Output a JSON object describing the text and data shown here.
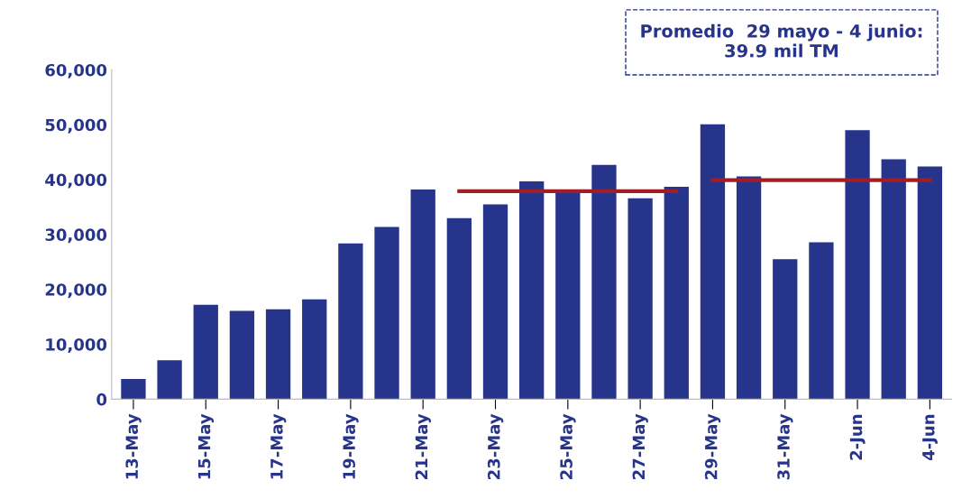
{
  "chart_data": {
    "type": "bar",
    "categories": [
      "13-May",
      null,
      "15-May",
      null,
      "17-May",
      null,
      "19-May",
      null,
      "21-May",
      null,
      "23-May",
      null,
      "25-May",
      null,
      "27-May",
      null,
      "29-May",
      null,
      "31-May",
      null,
      "2-Jun",
      null,
      "4-Jun"
    ],
    "series": [
      {
        "color": "#27348b",
        "values": [
          3700,
          7100,
          17200,
          16100,
          16400,
          18200,
          28400,
          31400,
          38200,
          33000,
          35500,
          39700,
          38000,
          42700,
          36600,
          38700,
          50100,
          40600,
          25500,
          28600,
          49000,
          43700,
          42400
        ]
      },
      {
        "type": "line",
        "color": "#a31d24",
        "values": [
          null,
          null,
          null,
          null,
          null,
          null,
          null,
          null,
          null,
          37900,
          37900,
          37900,
          37900,
          37900,
          37900,
          37900,
          null,
          null,
          null,
          null,
          null,
          null,
          null
        ]
      },
      {
        "type": "line",
        "color": "#a31d24",
        "values": [
          null,
          null,
          null,
          null,
          null,
          null,
          null,
          null,
          null,
          null,
          null,
          null,
          null,
          null,
          null,
          null,
          39900,
          39900,
          39900,
          39900,
          39900,
          39900,
          39900
        ]
      }
    ],
    "ylim": [
      0,
      60000
    ],
    "yticks": [
      {
        "value": 0,
        "label": "0"
      },
      {
        "value": 10000,
        "label": "10,000"
      },
      {
        "value": 20000,
        "label": "20,000"
      },
      {
        "value": 30000,
        "label": "30,000"
      },
      {
        "value": 40000,
        "label": "40,000"
      },
      {
        "value": 50000,
        "label": "50,000"
      },
      {
        "value": 60000,
        "label": "60,000"
      }
    ],
    "grid": false,
    "legend": false,
    "annotations": [
      "Promedio  29 mayo - 4 junio:\n39.9 mil TM"
    ]
  }
}
